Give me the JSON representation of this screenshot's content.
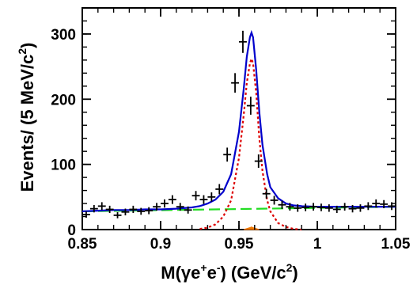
{
  "chart_data": {
    "type": "scatter",
    "title": "",
    "xlabel": {
      "main": "M(γe",
      "sup1": "+",
      "mid": "e",
      "sup2": "-",
      "unit": ") (GeV/c",
      "unit_sup": "2",
      "close": ")"
    },
    "ylabel": {
      "main": "Events/ (5 MeV/c",
      "sup": "2",
      "close": ")"
    },
    "xlim": [
      0.85,
      1.05
    ],
    "ylim": [
      0,
      340
    ],
    "xticks": [
      0.85,
      0.9,
      0.95,
      1,
      1.05
    ],
    "xtick_labels": [
      "0.85",
      "0.9",
      "0.95",
      "1",
      "1.05"
    ],
    "yticks": [
      0,
      100,
      200,
      300
    ],
    "ytick_labels": [
      "0",
      "100",
      "200",
      "300"
    ],
    "bin_width": 0.005,
    "grid": false,
    "data_points": {
      "x": [
        0.8525,
        0.8575,
        0.8625,
        0.8675,
        0.8725,
        0.8775,
        0.8825,
        0.8875,
        0.8925,
        0.8975,
        0.9025,
        0.9075,
        0.9125,
        0.9175,
        0.9225,
        0.9275,
        0.9325,
        0.9375,
        0.9425,
        0.9475,
        0.9525,
        0.9575,
        0.9625,
        0.9675,
        0.9725,
        0.9775,
        0.9825,
        0.9875,
        0.9925,
        0.9975,
        1.0025,
        1.0075,
        1.0125,
        1.0175,
        1.0225,
        1.0275,
        1.0325,
        1.0375,
        1.0425,
        1.0475
      ],
      "y": [
        23,
        32,
        36,
        31,
        22,
        27,
        31,
        28,
        29,
        35,
        40,
        46,
        35,
        30,
        52,
        46,
        50,
        62,
        115,
        225,
        288,
        190,
        105,
        55,
        45,
        38,
        35,
        33,
        34,
        35,
        34,
        33,
        31,
        35,
        32,
        33,
        36,
        40,
        39,
        36
      ]
    },
    "total_fit": {
      "name": "",
      "color": "#0000cc",
      "style": "solid",
      "x": [
        0.85,
        0.86,
        0.87,
        0.88,
        0.89,
        0.9,
        0.91,
        0.92,
        0.925,
        0.93,
        0.935,
        0.94,
        0.945,
        0.95,
        0.953,
        0.955,
        0.957,
        0.958,
        0.959,
        0.961,
        0.963,
        0.965,
        0.968,
        0.97,
        0.975,
        0.98,
        0.985,
        0.99,
        1.0,
        1.01,
        1.02,
        1.03,
        1.04,
        1.05
      ],
      "y": [
        28,
        29,
        30,
        30,
        31,
        31,
        32,
        34,
        36,
        40,
        46,
        58,
        85,
        150,
        215,
        265,
        295,
        302,
        295,
        245,
        180,
        130,
        85,
        65,
        48,
        40,
        37,
        36,
        35,
        35,
        35,
        35,
        35,
        35
      ]
    },
    "signal": {
      "name": "",
      "color": "#dd0000",
      "style": "dotted",
      "x": [
        0.925,
        0.93,
        0.935,
        0.94,
        0.945,
        0.95,
        0.953,
        0.955,
        0.957,
        0.958,
        0.959,
        0.961,
        0.963,
        0.965,
        0.968,
        0.97,
        0.975,
        0.98,
        0.985,
        0.99
      ],
      "y": [
        1,
        3,
        8,
        20,
        45,
        110,
        175,
        225,
        255,
        262,
        255,
        210,
        140,
        90,
        45,
        28,
        10,
        4,
        1,
        0
      ]
    },
    "background": {
      "name": "",
      "color": "#22dd22",
      "style": "dashed",
      "x": [
        0.85,
        1.05
      ],
      "y": [
        28,
        35
      ]
    },
    "peaking_component": {
      "name": "",
      "color": "#ee7700",
      "style": "filled",
      "x": [
        0.953,
        0.955,
        0.957,
        0.958,
        0.959,
        0.961,
        0.963
      ],
      "y": [
        0,
        1.5,
        3,
        4,
        3,
        1.5,
        0
      ]
    }
  }
}
